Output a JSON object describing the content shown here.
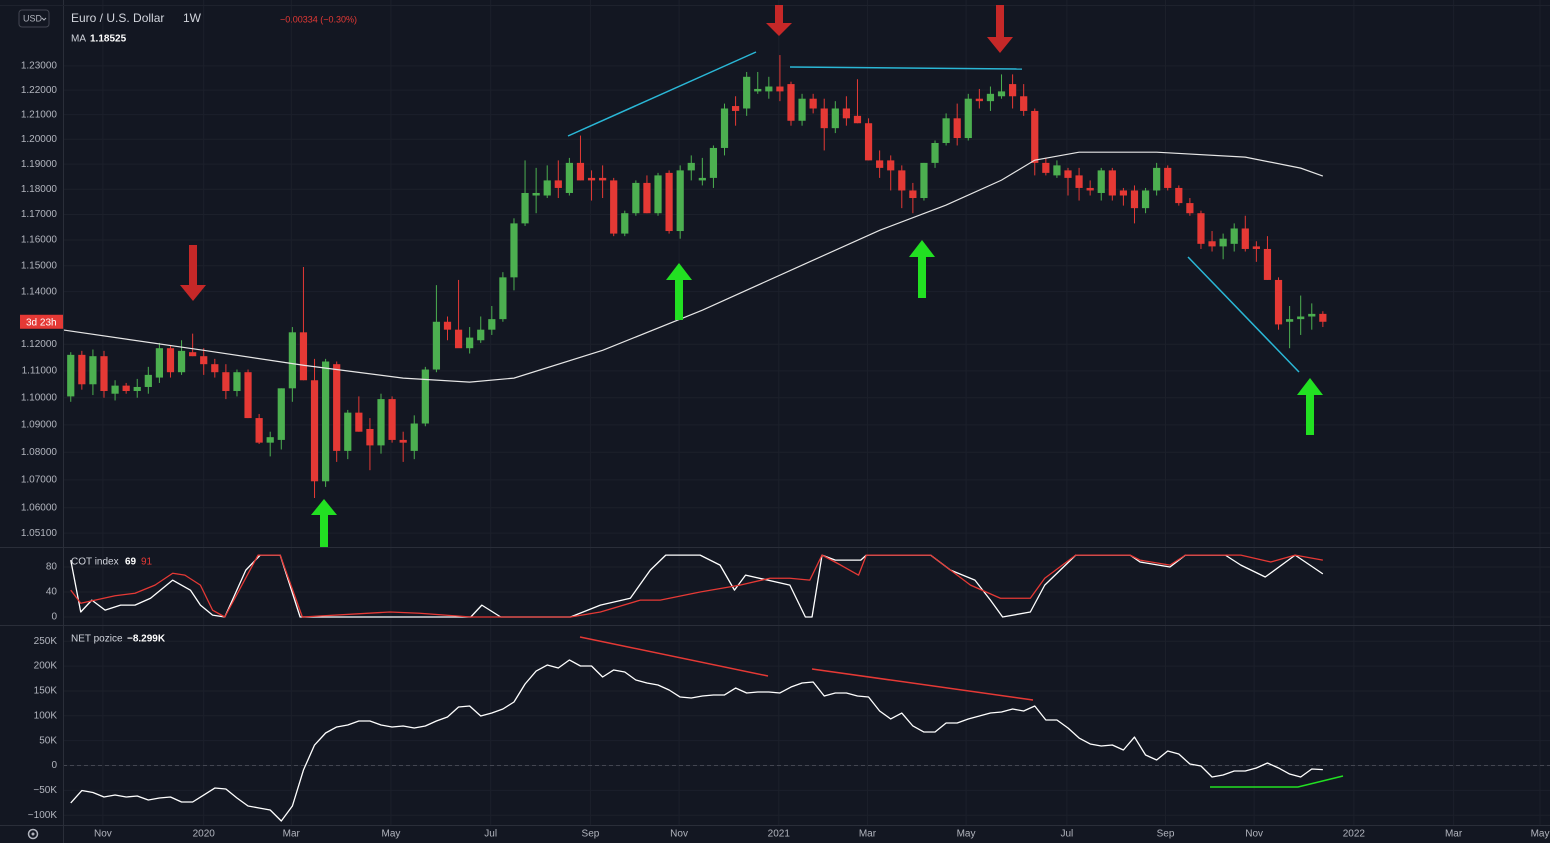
{
  "chart_data": [
    {
      "type": "candlestick",
      "title": "Euro / U.S. Dollar",
      "interval": "1W",
      "currency": "USD",
      "change_label": "−0.00334 (−0.30%)",
      "countdown_label": "3d 23h",
      "log_scale": true,
      "grid": true,
      "up_color": "#4caf50",
      "down_color": "#e53935",
      "xlim": [
        -0.7,
        133.5
      ],
      "ylim": [
        1.0461,
        1.2576
      ],
      "yticks": [
        {
          "value": 1.23,
          "label": "1.23000"
        },
        {
          "value": 1.22,
          "label": "1.22000"
        },
        {
          "value": 1.21,
          "label": "1.21000"
        },
        {
          "value": 1.2,
          "label": "1.20000"
        },
        {
          "value": 1.19,
          "label": "1.19000"
        },
        {
          "value": 1.18,
          "label": "1.18000"
        },
        {
          "value": 1.17,
          "label": "1.17000"
        },
        {
          "value": 1.16,
          "label": "1.16000"
        },
        {
          "value": 1.15,
          "label": "1.15000"
        },
        {
          "value": 1.14,
          "label": "1.14000"
        },
        {
          "value": 1.12,
          "label": "1.12000"
        },
        {
          "value": 1.11,
          "label": "1.11000"
        },
        {
          "value": 1.1,
          "label": "1.10000"
        },
        {
          "value": 1.09,
          "label": "1.09000"
        },
        {
          "value": 1.08,
          "label": "1.08000"
        },
        {
          "value": 1.07,
          "label": "1.07000"
        },
        {
          "value": 1.06,
          "label": "1.06000"
        },
        {
          "value": 1.051,
          "label": "1.05100"
        }
      ],
      "open": [
        1.1005,
        1.116,
        1.105,
        1.1155,
        1.1015,
        1.1045,
        1.1025,
        1.104,
        1.1075,
        1.1185,
        1.1095,
        1.117,
        1.1155,
        1.1125,
        1.1095,
        1.1025,
        1.1095,
        1.0925,
        1.0835,
        1.0845,
        1.1035,
        1.1245,
        1.1065,
        1.0695,
        1.1125,
        1.0805,
        1.0945,
        1.0885,
        1.0825,
        1.0995,
        1.0845,
        1.0805,
        1.0905,
        1.1105,
        1.1285,
        1.1255,
        1.1185,
        1.1215,
        1.1255,
        1.1295,
        1.1455,
        1.1665,
        1.1775,
        1.1775,
        1.1835,
        1.1785,
        1.1905,
        1.1845,
        1.1845,
        1.1835,
        1.1625,
        1.1705,
        1.1825,
        1.1705,
        1.1865,
        1.1635,
        1.1875,
        1.1835,
        1.1845,
        1.1965,
        1.2135,
        1.2125,
        1.2195,
        1.2195,
        1.2215,
        1.2225,
        1.2075,
        1.2165,
        1.2125,
        1.2045,
        1.2125,
        1.2095,
        1.2065,
        1.1915,
        1.1915,
        1.1875,
        1.1795,
        1.1765,
        1.1905,
        1.1985,
        1.2085,
        1.2005,
        1.2165,
        1.2155,
        1.2175,
        1.2225,
        1.2175,
        1.2115,
        1.1905,
        1.1855,
        1.1875,
        1.1855,
        1.1805,
        1.1785,
        1.1875,
        1.1795,
        1.1795,
        1.1725,
        1.1795,
        1.1885,
        1.1805,
        1.1745,
        1.1705,
        1.1595,
        1.1575,
        1.1585,
        1.1645,
        1.1575,
        1.1565,
        1.1445,
        1.1285,
        1.1295,
        1.1305,
        1.1315
      ],
      "high": [
        1.117,
        1.1175,
        1.118,
        1.1175,
        1.1065,
        1.1055,
        1.107,
        1.1115,
        1.1205,
        1.1195,
        1.1215,
        1.124,
        1.1185,
        1.1145,
        1.1125,
        1.1105,
        1.1105,
        1.094,
        1.0875,
        1.1035,
        1.1265,
        1.1495,
        1.1145,
        1.1145,
        1.1135,
        1.0955,
        1.1005,
        1.0925,
        1.1015,
        1.1005,
        1.0875,
        1.0935,
        1.1115,
        1.1425,
        1.1305,
        1.1445,
        1.1265,
        1.1305,
        1.1345,
        1.1475,
        1.1685,
        1.1915,
        1.1885,
        1.1895,
        1.1915,
        1.1925,
        1.2015,
        1.1875,
        1.1895,
        1.1845,
        1.1715,
        1.1835,
        1.1855,
        1.1865,
        1.1875,
        1.1895,
        1.1935,
        1.1925,
        1.1975,
        1.2145,
        1.2175,
        1.2275,
        1.2275,
        1.2255,
        1.2345,
        1.2235,
        1.2185,
        1.2185,
        1.2165,
        1.2155,
        1.2175,
        1.2245,
        1.2085,
        1.1955,
        1.1935,
        1.1895,
        1.1825,
        1.1905,
        1.1995,
        1.2105,
        1.2145,
        1.2185,
        1.2205,
        1.2215,
        1.2265,
        1.2265,
        1.2225,
        1.2125,
        1.1925,
        1.1915,
        1.1885,
        1.1885,
        1.1835,
        1.1885,
        1.1885,
        1.1805,
        1.1815,
        1.1805,
        1.1905,
        1.1895,
        1.1815,
        1.1765,
        1.1715,
        1.1635,
        1.1625,
        1.1665,
        1.1695,
        1.1595,
        1.1615,
        1.1455,
        1.1345,
        1.1385,
        1.1355,
        1.1325
      ],
      "low": [
        1.0985,
        1.103,
        1.101,
        1.1,
        1.099,
        1.1015,
        1.1,
        1.1015,
        1.1055,
        1.1075,
        1.1085,
        1.1155,
        1.1085,
        1.1075,
        1.0995,
        1.1005,
        1.0925,
        1.083,
        1.0785,
        1.081,
        1.0985,
        1.1065,
        1.0635,
        1.0675,
        1.0765,
        1.0775,
        1.0875,
        1.0735,
        1.0795,
        1.0835,
        1.0765,
        1.0775,
        1.0895,
        1.1095,
        1.1215,
        1.1195,
        1.1165,
        1.1205,
        1.1235,
        1.1285,
        1.1405,
        1.1655,
        1.1705,
        1.1765,
        1.1765,
        1.1775,
        1.1835,
        1.1755,
        1.1765,
        1.1615,
        1.1615,
        1.1695,
        1.1705,
        1.1695,
        1.1625,
        1.1605,
        1.1835,
        1.1815,
        1.1805,
        1.1935,
        1.2055,
        1.2095,
        1.2185,
        1.2165,
        1.2155,
        1.2055,
        1.2055,
        1.2105,
        1.1955,
        1.2025,
        1.2055,
        1.2065,
        1.1915,
        1.1845,
        1.1795,
        1.1725,
        1.1705,
        1.1755,
        1.1885,
        1.1975,
        1.1975,
        1.1995,
        1.2125,
        1.2115,
        1.2165,
        1.2125,
        1.2095,
        1.1855,
        1.1855,
        1.1845,
        1.1775,
        1.1755,
        1.1775,
        1.1755,
        1.1755,
        1.1735,
        1.1665,
        1.1705,
        1.1775,
        1.1795,
        1.1735,
        1.1695,
        1.1565,
        1.1555,
        1.1525,
        1.1555,
        1.1555,
        1.1515,
        1.1445,
        1.1255,
        1.1185,
        1.1235,
        1.1255,
        1.1265
      ],
      "close": [
        1.116,
        1.105,
        1.1155,
        1.1025,
        1.1045,
        1.1025,
        1.104,
        1.1085,
        1.1185,
        1.1095,
        1.1175,
        1.1155,
        1.1125,
        1.1095,
        1.1025,
        1.1095,
        1.0925,
        1.0835,
        1.0855,
        1.1035,
        1.1245,
        1.1065,
        1.0695,
        1.1135,
        1.0805,
        1.0945,
        1.0875,
        1.0825,
        1.0995,
        1.0845,
        1.0835,
        1.0905,
        1.1105,
        1.1285,
        1.1255,
        1.1185,
        1.1225,
        1.1255,
        1.1295,
        1.1455,
        1.1665,
        1.1785,
        1.1785,
        1.1835,
        1.1805,
        1.1905,
        1.1835,
        1.1835,
        1.1835,
        1.1625,
        1.1705,
        1.1825,
        1.1705,
        1.1855,
        1.1635,
        1.1875,
        1.1905,
        1.1845,
        1.1965,
        1.2125,
        1.2115,
        1.2255,
        1.2205,
        1.2215,
        1.2195,
        1.2075,
        1.2165,
        1.2125,
        1.2045,
        1.2125,
        1.2085,
        1.2065,
        1.1915,
        1.1885,
        1.1875,
        1.1795,
        1.1765,
        1.1905,
        1.1985,
        1.2085,
        1.2005,
        1.2165,
        1.2155,
        1.2185,
        1.2195,
        1.2175,
        1.2115,
        1.1905,
        1.1865,
        1.1895,
        1.1845,
        1.1805,
        1.1795,
        1.1875,
        1.1775,
        1.1775,
        1.1725,
        1.1795,
        1.1885,
        1.1805,
        1.1745,
        1.1705,
        1.1585,
        1.1575,
        1.1605,
        1.1645,
        1.1565,
        1.1565,
        1.1445,
        1.1275,
        1.1295,
        1.1305,
        1.1315,
        1.1285
      ],
      "ma": {
        "name": "MA",
        "color": "#e6e6e6",
        "x": [
          -0.7,
          12,
          21,
          30,
          36,
          40,
          48,
          57,
          66,
          73,
          79,
          84,
          87,
          91,
          98,
          106,
          111,
          113
        ],
        "values": [
          1.1254,
          1.1177,
          1.1121,
          1.1073,
          1.1058,
          1.1073,
          1.1177,
          1.1329,
          1.1502,
          1.1638,
          1.1737,
          1.1836,
          1.1916,
          1.1948,
          1.1948,
          1.1928,
          1.1884,
          1.18525
        ]
      }
    },
    {
      "type": "line",
      "title": "COT index",
      "grid": true,
      "xlim": [
        -0.7,
        133.5
      ],
      "ylim": [
        -12.8,
        112
      ],
      "yticks": [
        0,
        40,
        80
      ],
      "series": [
        {
          "color": "#ffffff",
          "x": [
            0,
            0.9,
            1.9,
            3.1,
            4.5,
            5.8,
            7.2,
            9.2,
            10.8,
            11.7,
            12.8,
            13.9,
            15.8,
            17.1,
            18.9,
            20.7,
            36.1,
            37.1,
            38.8,
            45.1,
            47.8,
            50.5,
            52.3,
            53.7,
            56.8,
            58.6,
            59.9,
            60.9,
            64.9,
            66.3,
            66.9,
            67.8,
            69.0,
            71.3,
            71.8,
            77.6,
            79.4,
            81.6,
            83.0,
            84.1,
            86.6,
            87.9,
            90.7,
            95.6,
            96.5,
            99.2,
            100.6,
            104.2,
            105.6,
            107.8,
            110.5,
            113
          ],
          "values": [
            91,
            8,
            27,
            11,
            19,
            19,
            30,
            59,
            43,
            19,
            3,
            0,
            75,
            99,
            99,
            0,
            0,
            19,
            0,
            0,
            19,
            30,
            75,
            99,
            99,
            83,
            43,
            67,
            51,
            0,
            0,
            99,
            91,
            91,
            99,
            99,
            75,
            59,
            27,
            0,
            8,
            51,
            99,
            99,
            88,
            80,
            99,
            99,
            83,
            64,
            99,
            69
          ]
        },
        {
          "color": "#e53935",
          "x": [
            0,
            0.9,
            2.2,
            4.0,
            5.8,
            7.6,
            9.2,
            10.3,
            11.7,
            12.8,
            13.9,
            16.9,
            18.9,
            20.9,
            28.8,
            31.5,
            36.1,
            45.1,
            47.8,
            51.4,
            53.2,
            56.8,
            60.4,
            63.1,
            64.9,
            66.7,
            67.8,
            69.5,
            71.1,
            71.8,
            77.6,
            79.4,
            81.2,
            83.9,
            86.6,
            87.9,
            90.7,
            95.6,
            96.5,
            99.2,
            100.6,
            105.6,
            108.3,
            110.5,
            113
          ],
          "values": [
            43,
            22,
            27,
            34,
            38,
            51,
            70,
            67,
            51,
            11,
            0,
            99,
            99,
            0,
            8,
            6,
            0,
            0,
            8,
            27,
            27,
            40,
            51,
            62,
            62,
            59,
            99,
            83,
            67,
            99,
            99,
            75,
            51,
            30,
            30,
            62,
            99,
            99,
            91,
            83,
            99,
            99,
            88,
            99,
            91
          ]
        }
      ]
    },
    {
      "type": "line",
      "title": "NET pozice",
      "grid": true,
      "zero_line": true,
      "xlim": [
        -0.7,
        133.5
      ],
      "ylim": [
        -119700,
        282700
      ],
      "yticks": [
        {
          "value": 250000,
          "label": "250K"
        },
        {
          "value": 200000,
          "label": "200K"
        },
        {
          "value": 150000,
          "label": "150K"
        },
        {
          "value": 100000,
          "label": "100K"
        },
        {
          "value": 50000,
          "label": "50K"
        },
        0,
        {
          "value": -50000,
          "label": "−50K"
        },
        {
          "value": -100000,
          "label": "−100K"
        }
      ],
      "xticks": [
        {
          "value": 2.9,
          "label": "Nov"
        },
        {
          "value": 12,
          "label": "2020"
        },
        {
          "value": 19.9,
          "label": "Mar"
        },
        {
          "value": 28.9,
          "label": "May"
        },
        {
          "value": 37.9,
          "label": "Jul"
        },
        {
          "value": 46.9,
          "label": "Sep"
        },
        {
          "value": 54.9,
          "label": "Nov"
        },
        {
          "value": 63.9,
          "label": "2021"
        },
        {
          "value": 71.9,
          "label": "Mar"
        },
        {
          "value": 80.8,
          "label": "May"
        },
        {
          "value": 89.9,
          "label": "Jul"
        },
        {
          "value": 98.8,
          "label": "Sep"
        },
        {
          "value": 106.8,
          "label": "Nov"
        },
        {
          "value": 115.8,
          "label": "2022"
        },
        {
          "value": 124.8,
          "label": "Mar"
        },
        {
          "value": 132.6,
          "label": "May"
        }
      ],
      "series": [
        {
          "color": "#ffffff",
          "last_label": "−8.299K",
          "values": [
            -75400,
            -50300,
            -54300,
            -63400,
            -59400,
            -63400,
            -61400,
            -69400,
            -65400,
            -63400,
            -73400,
            -73400,
            -59400,
            -45300,
            -47300,
            -65400,
            -81500,
            -85500,
            -89500,
            -111700,
            -81500,
            -9100,
            41200,
            65400,
            77500,
            81500,
            89500,
            89500,
            81500,
            77500,
            79500,
            75400,
            79500,
            89500,
            97600,
            117700,
            119700,
            99600,
            105600,
            113700,
            127800,
            164000,
            190100,
            202200,
            196200,
            212300,
            200200,
            200200,
            178100,
            192200,
            188100,
            172000,
            166000,
            162000,
            151900,
            137800,
            135800,
            139800,
            141900,
            141900,
            155900,
            145900,
            147900,
            147900,
            145900,
            157900,
            166000,
            168000,
            139800,
            145900,
            145900,
            139800,
            137800,
            109700,
            93600,
            105600,
            79500,
            67400,
            67400,
            85500,
            85500,
            93600,
            99600,
            105600,
            107600,
            113700,
            109700,
            119700,
            91500,
            91500,
            75400,
            55300,
            43300,
            39200,
            41200,
            31200,
            57300,
            21100,
            11100,
            29200,
            23100,
            3000,
            -1000,
            -23100,
            -19100,
            -11100,
            -11100,
            -5000,
            5000,
            -5000,
            -17100,
            -23100,
            -7000,
            -8299
          ]
        }
      ]
    }
  ]
}
